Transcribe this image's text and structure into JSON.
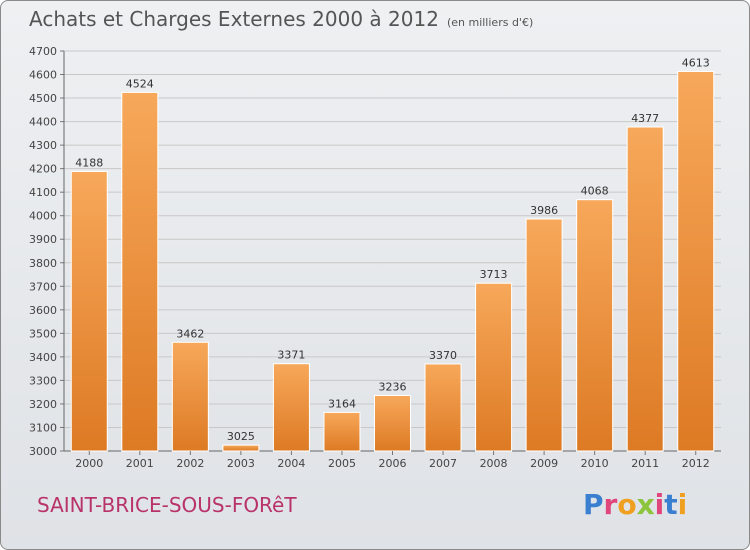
{
  "header": {
    "title": "Achats et Charges Externes 2000 à 2012",
    "unit": "(en milliers d'€)"
  },
  "footer": {
    "city": "SAINT-BRICE-SOUS-FORêT",
    "logo_text": "Proxiti"
  },
  "colors": {
    "bar_light": "#f7a85a",
    "bar_dark": "#dd7a24",
    "grid": "#c8c8c8",
    "city": "#b8336a",
    "logo": [
      "#3a7fd0",
      "#e0457b",
      "#f0a020",
      "#8cc43c",
      "#e0457b",
      "#3a7fd0",
      "#f0a020"
    ]
  },
  "chart_data": {
    "type": "bar",
    "title": "Achats et Charges Externes 2000 à 2012",
    "subtitle": "(en milliers d'€)",
    "categories": [
      "2000",
      "2001",
      "2002",
      "2003",
      "2004",
      "2005",
      "2006",
      "2007",
      "2008",
      "2009",
      "2010",
      "2011",
      "2012"
    ],
    "values": [
      4188,
      4524,
      3462,
      3025,
      3371,
      3164,
      3236,
      3370,
      3713,
      3986,
      4068,
      4377,
      4613
    ],
    "ylim": [
      3000,
      4700
    ],
    "yticks": [
      3000,
      3100,
      3200,
      3300,
      3400,
      3500,
      3600,
      3700,
      3800,
      3900,
      4000,
      4100,
      4200,
      4300,
      4400,
      4500,
      4600,
      4700
    ],
    "xlabel": "",
    "ylabel": "",
    "grid": true
  }
}
